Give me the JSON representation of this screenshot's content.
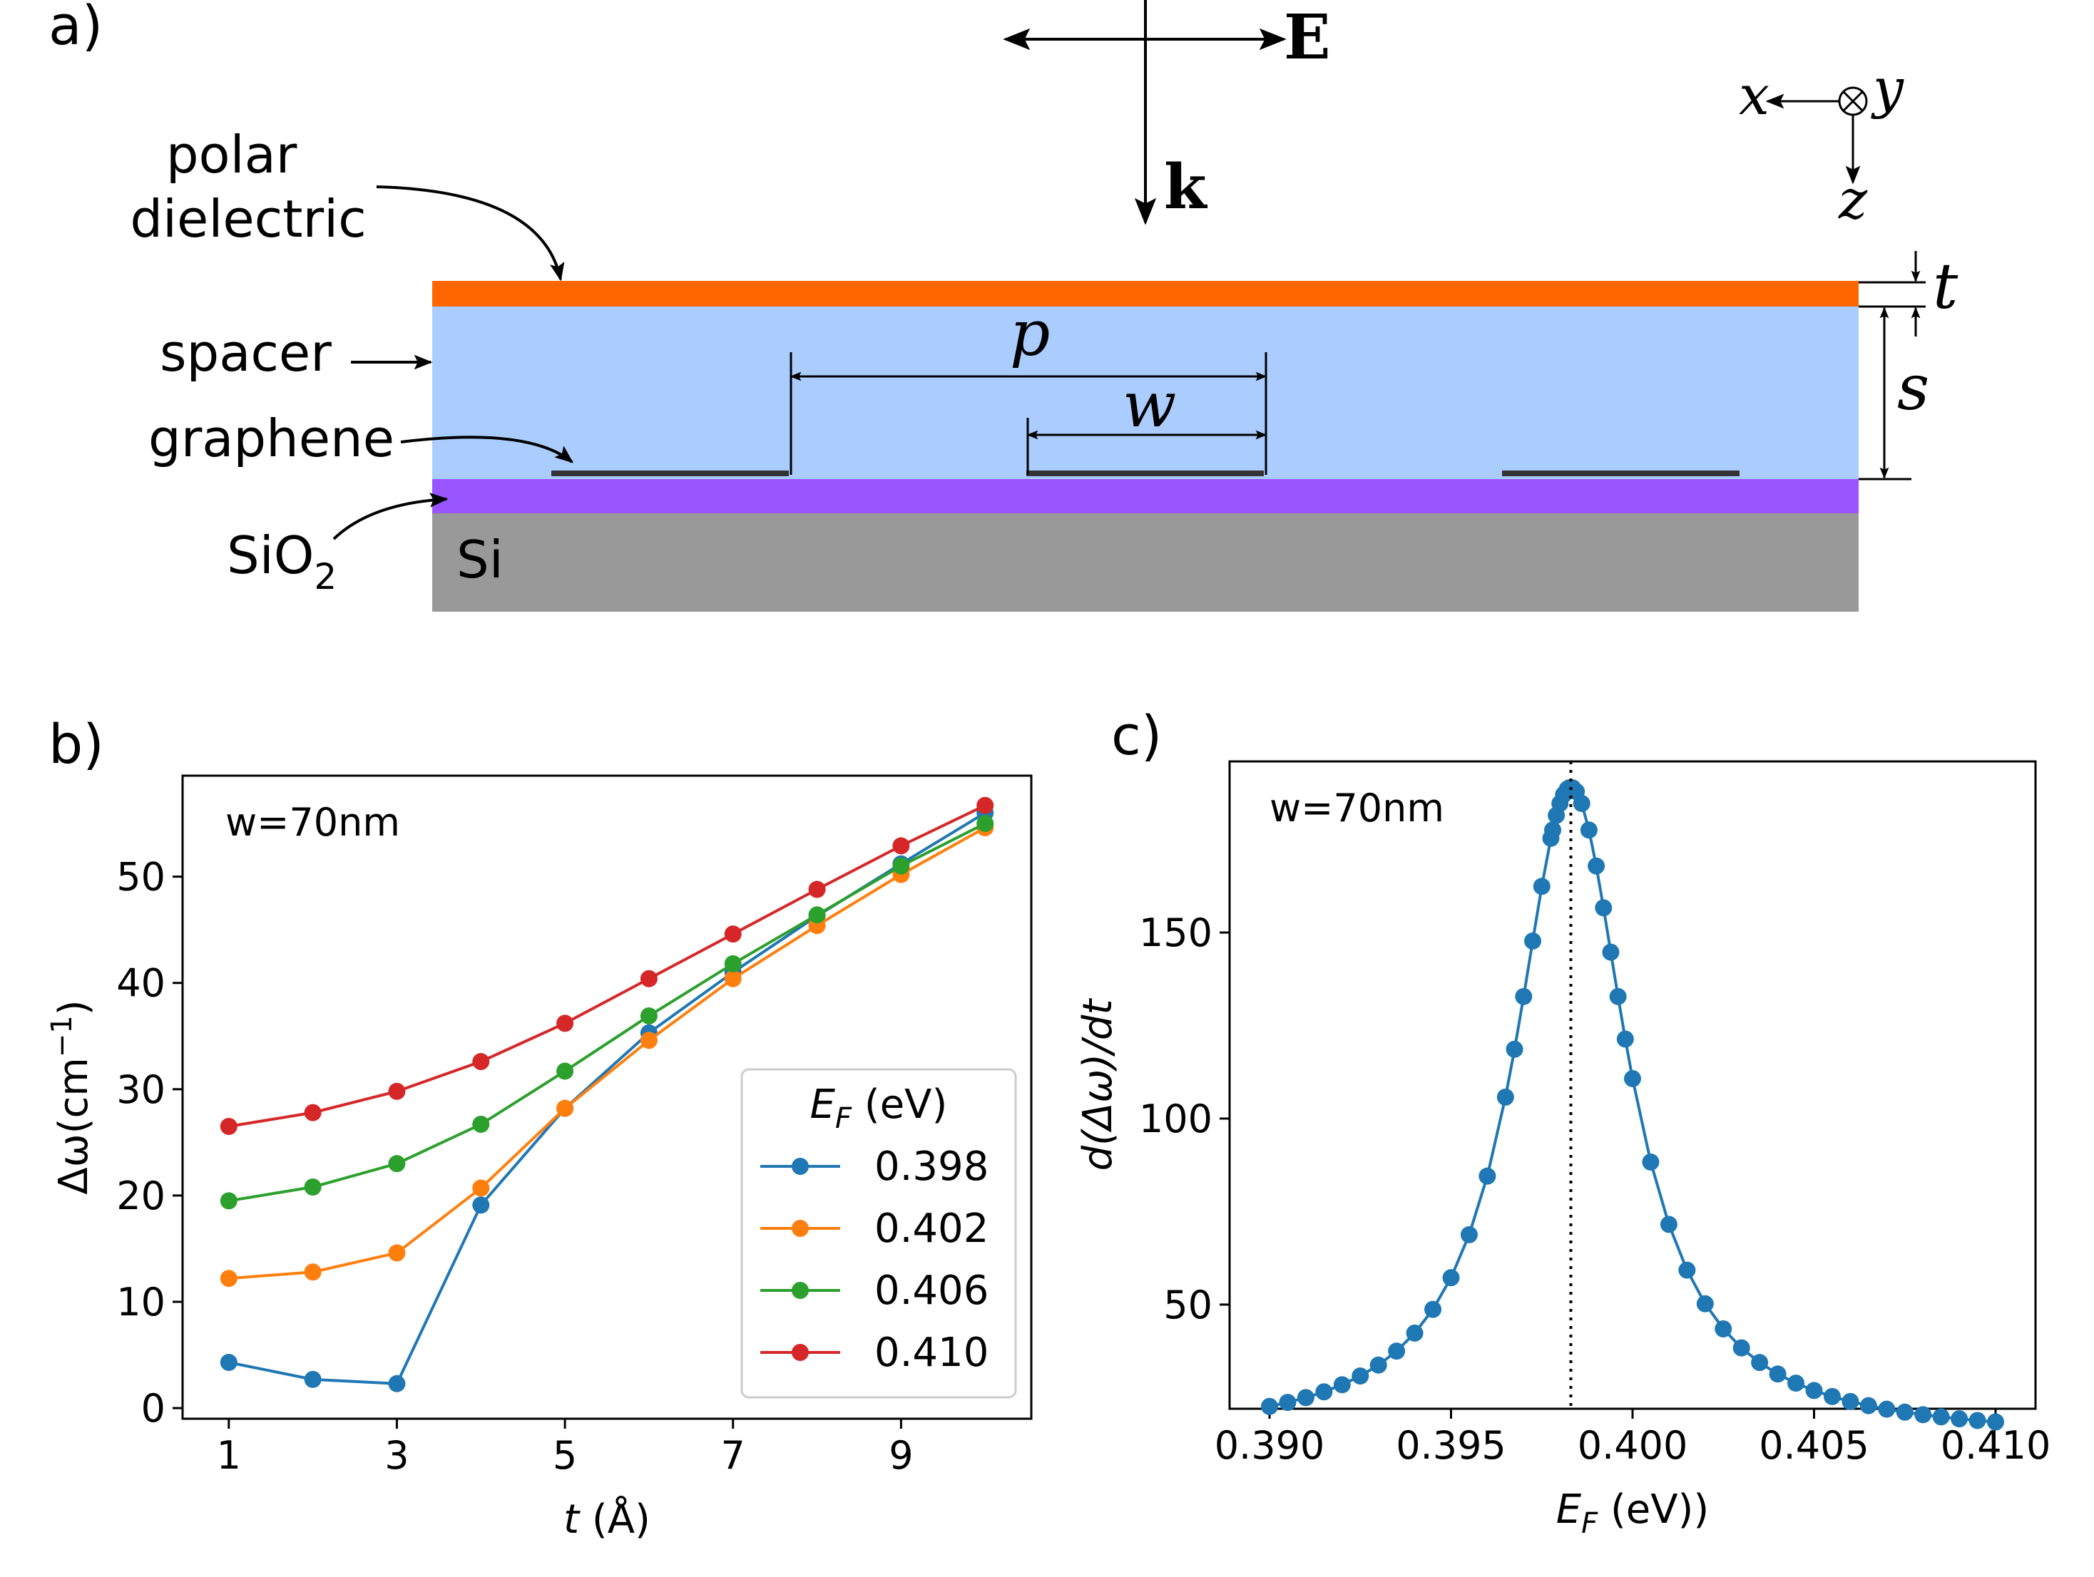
{
  "panel_labels": {
    "a": "a)",
    "b": "b)",
    "c": "c)"
  },
  "schematic": {
    "layers": {
      "polar_dielectric": "polar\ndielectric",
      "spacer": "spacer",
      "graphene": "graphene",
      "sio2_main": "SiO",
      "sio2_sub": "2",
      "si": "Si"
    },
    "symbols": {
      "E": "E",
      "k": "k",
      "p": "p",
      "w": "w",
      "t": "t",
      "s": "s",
      "x": "x",
      "y": "y",
      "z": "z"
    },
    "colors": {
      "polar_dielectric": "#ff6600",
      "spacer": "#aaccff",
      "sio2": "#9955ff",
      "si": "#999999",
      "graphene": "#333333"
    }
  },
  "chart_data": [
    {
      "type": "line",
      "annotation": "w=70nm",
      "xlabel_italic": "t",
      "xlabel_rest": " (Å)",
      "ylabel_prefix": "Δω(cm",
      "ylabel_sup": "−1",
      "ylabel_suffix": ")",
      "xlim": [
        0.45,
        10.55
      ],
      "ylim": [
        -1.0,
        59.5
      ],
      "xticks": [
        1,
        3,
        5,
        7,
        9
      ],
      "yticks": [
        0,
        10,
        20,
        30,
        40,
        50
      ],
      "legend_title_main": "E",
      "legend_title_sub": "F",
      "legend_title_rest": " (eV)",
      "legend_position": "lower-right",
      "x": [
        1,
        2,
        3,
        4,
        5,
        6,
        7,
        8,
        9,
        10
      ],
      "series": [
        {
          "name": "0.398",
          "color": "#1f77b4",
          "values": [
            4.3,
            2.7,
            2.3,
            19.1,
            28.2,
            35.3,
            41.0,
            46.3,
            51.2,
            56.0
          ]
        },
        {
          "name": "0.402",
          "color": "#ff7f0e",
          "values": [
            12.2,
            12.8,
            14.6,
            20.7,
            28.2,
            34.6,
            40.4,
            45.4,
            50.2,
            54.6
          ]
        },
        {
          "name": "0.406",
          "color": "#2ca02c",
          "values": [
            19.5,
            20.8,
            23.0,
            26.7,
            31.7,
            36.9,
            41.8,
            46.4,
            51.0,
            55.0
          ]
        },
        {
          "name": "0.410",
          "color": "#d62728",
          "values": [
            26.5,
            27.8,
            29.8,
            32.6,
            36.2,
            40.4,
            44.6,
            48.8,
            52.9,
            56.7
          ]
        }
      ]
    },
    {
      "type": "scatter",
      "annotation": "w=70nm",
      "xlabel_main": "E",
      "xlabel_sub": "F",
      "xlabel_rest": " (eV))",
      "ylabel_text": "d(Δω)/dt",
      "xlim": [
        0.3889,
        0.4111
      ],
      "ylim": [
        22.0,
        196.0
      ],
      "xticks": [
        0.39,
        0.395,
        0.4,
        0.405,
        0.41
      ],
      "xtick_labels": [
        "0.390",
        "0.395",
        "0.400",
        "0.405",
        "0.410"
      ],
      "yticks": [
        50,
        100,
        150
      ],
      "vline_x": 0.3983,
      "peak": {
        "x0": 0.3983,
        "gamma": 0.00189,
        "amplitude": 175.0,
        "baseline": 14.0
      },
      "series_color": "#1f77b4",
      "x_left_coarse": [
        0.39,
        0.3905,
        0.391,
        0.3915,
        0.392,
        0.3925,
        0.393,
        0.3935,
        0.394,
        0.3945,
        0.395,
        0.3955,
        0.396
      ],
      "x_right_coarse": [
        0.4005,
        0.401,
        0.4015,
        0.402,
        0.4025,
        0.403,
        0.4035,
        0.404,
        0.4045,
        0.405,
        0.4055,
        0.406,
        0.4065,
        0.407,
        0.4075,
        0.408,
        0.4085,
        0.409,
        0.4095,
        0.41
      ],
      "x_dense_left": [
        0.3965,
        0.39675,
        0.397,
        0.39725,
        0.3975,
        0.39775,
        0.3978,
        0.3979,
        0.398,
        0.3981,
        0.3982,
        0.39825
      ],
      "x_dense_right": [
        0.39835,
        0.39845,
        0.3986,
        0.3988,
        0.399,
        0.3992,
        0.3994,
        0.3996,
        0.3998,
        0.4
      ]
    }
  ]
}
